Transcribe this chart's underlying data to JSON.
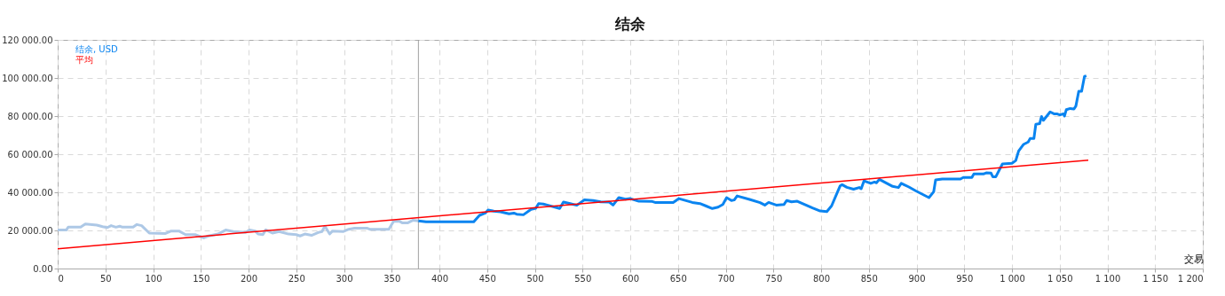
{
  "chart_data": {
    "type": "line",
    "title": "结余",
    "xlabel": "交易",
    "xlim": [
      0,
      1200
    ],
    "ylim": [
      0,
      120000
    ],
    "xticks": [
      0,
      50,
      100,
      150,
      200,
      250,
      300,
      350,
      400,
      450,
      500,
      550,
      600,
      650,
      700,
      750,
      800,
      850,
      900,
      950,
      {
        "value": 1000,
        "label": "1 000"
      },
      {
        "value": 1050,
        "label": "1 050"
      },
      {
        "value": 1100,
        "label": "1 100"
      },
      {
        "value": 1150,
        "label": "1 150"
      },
      {
        "value": 1200,
        "label": "1 200"
      }
    ],
    "yticks": [
      {
        "value": 0,
        "label": "0.00"
      },
      {
        "value": 20000,
        "label": "20 000.00"
      },
      {
        "value": 40000,
        "label": "40 000.00"
      },
      {
        "value": 60000,
        "label": "60 000.00"
      },
      {
        "value": 80000,
        "label": "80 000.00"
      },
      {
        "value": 100000,
        "label": "100 000.00"
      },
      {
        "value": 120000,
        "label": "120 000.00"
      }
    ],
    "grid": true,
    "legend": "top left",
    "line_style": "solid",
    "marker": "none",
    "ref_lines": [
      {
        "axis": "x",
        "value": 378,
        "color": "#a0a0a0"
      }
    ],
    "series": [
      {
        "color": "#adc8e6",
        "x": [
          0,
          9,
          11,
          24,
          29,
          41,
          47,
          52,
          56,
          61,
          65,
          68,
          79,
          83,
          88,
          96,
          113,
          119,
          127,
          134,
          144,
          153,
          158,
          168,
          176,
          184,
          197,
          201,
          207,
          210,
          215,
          218,
          225,
          232,
          242,
          250,
          254,
          259,
          266,
          273,
          277,
          280,
          285,
          288,
          299,
          305,
          311,
          324,
          327,
          347,
          352,
          358,
          361,
          367,
          372,
          378
        ],
        "values": [
          20200,
          20200,
          21700,
          21700,
          23400,
          22800,
          22000,
          21500,
          22500,
          21700,
          22200,
          21700,
          21700,
          23100,
          22500,
          18600,
          18400,
          19700,
          19700,
          17800,
          17800,
          16100,
          17100,
          18100,
          20200,
          19400,
          18900,
          20200,
          19700,
          18100,
          17800,
          20300,
          18600,
          19400,
          18100,
          17800,
          17100,
          18100,
          17400,
          18900,
          19400,
          22200,
          18100,
          19700,
          19400,
          20600,
          21200,
          21200,
          20600,
          20600,
          24800,
          24800,
          24000,
          24000,
          25300,
          25000
        ]
      },
      {
        "name": "结余, USD",
        "color": "#0a84f0",
        "x": [
          378,
          386,
          436,
          442,
          448,
          451,
          457,
          464,
          473,
          478,
          481,
          488,
          496,
          501,
          504,
          509,
          513,
          526,
          530,
          537,
          544,
          552,
          561,
          569,
          578,
          582,
          588,
          595,
          600,
          609,
          623,
          626,
          645,
          651,
          665,
          673,
          679,
          686,
          692,
          697,
          701,
          706,
          709,
          712,
          725,
          736,
          741,
          745,
          753,
          761,
          764,
          769,
          775,
          791,
          799,
          806,
          811,
          816,
          820,
          822,
          827,
          834,
          840,
          842,
          845,
          852,
          856,
          858,
          861,
          875,
          881,
          884,
          892,
          899,
          913,
          918,
          920,
          927,
          946,
          949,
          958,
          960,
          970,
          973,
          978,
          980,
          983,
          990,
          1000,
          1004,
          1007,
          1012,
          1017,
          1019,
          1023,
          1025,
          1029,
          1031,
          1033,
          1040,
          1044,
          1047,
          1050,
          1054,
          1055,
          1057,
          1061,
          1065,
          1067,
          1070,
          1073,
          1076,
          1078
        ],
        "values": [
          25000,
          24500,
          24500,
          27900,
          29100,
          30700,
          30100,
          29800,
          28700,
          29100,
          28500,
          28200,
          31000,
          31600,
          34100,
          33800,
          33300,
          31500,
          34900,
          34100,
          33200,
          36000,
          35700,
          35000,
          34900,
          33300,
          37200,
          36400,
          36700,
          35300,
          35200,
          34700,
          34700,
          36700,
          34700,
          34100,
          32900,
          31500,
          32200,
          33600,
          37200,
          35700,
          36000,
          38100,
          36300,
          34600,
          33300,
          34700,
          33300,
          33600,
          35700,
          35000,
          35300,
          31800,
          30200,
          29900,
          32900,
          38800,
          43400,
          44000,
          42600,
          41600,
          42500,
          41900,
          46000,
          44700,
          45400,
          45000,
          46800,
          43100,
          42500,
          44700,
          42800,
          40800,
          37200,
          40300,
          46500,
          47000,
          47000,
          47800,
          47800,
          49600,
          49600,
          50200,
          50100,
          48100,
          48100,
          54900,
          55200,
          56700,
          61700,
          65100,
          66400,
          68200,
          68200,
          75700,
          76000,
          79800,
          77800,
          82200,
          81200,
          81200,
          80600,
          81200,
          80000,
          83400,
          84000,
          83700,
          85300,
          93000,
          93000,
          100800,
          101100
        ]
      },
      {
        "name": "平均",
        "color": "#ff0000",
        "x": [
          0,
          1080
        ],
        "values": [
          10400,
          56900
        ]
      }
    ]
  }
}
